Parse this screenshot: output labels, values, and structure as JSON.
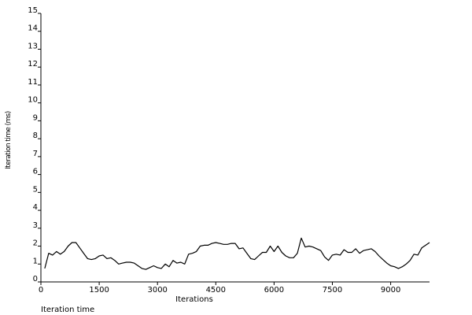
{
  "caption": "Iteration time",
  "chart_data": {
    "type": "line",
    "title": "",
    "xlabel": "Iterations",
    "ylabel": "Iteration time (ms)",
    "xlim": [
      0,
      10000
    ],
    "ylim": [
      0,
      15
    ],
    "xticks": [
      0,
      1500,
      3000,
      4500,
      6000,
      7500,
      9000
    ],
    "yticks": [
      0,
      1,
      2,
      3,
      4,
      5,
      6,
      7,
      8,
      9,
      10,
      11,
      12,
      13,
      14,
      15
    ],
    "grid": false,
    "series": [
      {
        "color": "#000000",
        "x": [
          100,
          200,
          300,
          400,
          500,
          600,
          700,
          800,
          900,
          1000,
          1100,
          1200,
          1300,
          1400,
          1500,
          1600,
          1700,
          1800,
          1900,
          2000,
          2100,
          2200,
          2300,
          2400,
          2500,
          2600,
          2700,
          2800,
          2900,
          3000,
          3100,
          3200,
          3300,
          3400,
          3500,
          3600,
          3700,
          3800,
          3900,
          4000,
          4100,
          4200,
          4300,
          4400,
          4500,
          4600,
          4700,
          4800,
          4900,
          5000,
          5100,
          5200,
          5300,
          5400,
          5500,
          5600,
          5700,
          5800,
          5900,
          6000,
          6100,
          6200,
          6300,
          6400,
          6500,
          6600,
          6700,
          6800,
          6900,
          7000,
          7100,
          7200,
          7300,
          7400,
          7500,
          7600,
          7700,
          7800,
          7900,
          8000,
          8100,
          8200,
          8300,
          8400,
          8500,
          8600,
          8700,
          8800,
          8900,
          9000,
          9100,
          9200,
          9300,
          9400,
          9500,
          9600,
          9700,
          9800,
          9900,
          10000
        ],
        "y": [
          0.75,
          1.6,
          1.5,
          1.7,
          1.55,
          1.7,
          2.0,
          2.2,
          2.2,
          1.9,
          1.6,
          1.3,
          1.25,
          1.3,
          1.45,
          1.5,
          1.3,
          1.35,
          1.2,
          1.0,
          1.05,
          1.1,
          1.1,
          1.05,
          0.9,
          0.75,
          0.7,
          0.8,
          0.9,
          0.8,
          0.75,
          1.0,
          0.85,
          1.2,
          1.05,
          1.1,
          1.0,
          1.55,
          1.6,
          1.7,
          2.0,
          2.05,
          2.05,
          2.15,
          2.2,
          2.15,
          2.1,
          2.1,
          2.15,
          2.15,
          1.85,
          1.9,
          1.6,
          1.3,
          1.25,
          1.45,
          1.65,
          1.65,
          2.0,
          1.7,
          2.0,
          1.65,
          1.45,
          1.35,
          1.35,
          1.6,
          2.45,
          1.95,
          2.0,
          1.95,
          1.85,
          1.75,
          1.4,
          1.2,
          1.5,
          1.55,
          1.5,
          1.8,
          1.65,
          1.65,
          1.85,
          1.6,
          1.75,
          1.8,
          1.85,
          1.7,
          1.45,
          1.25,
          1.05,
          0.9,
          0.85,
          0.75,
          0.85,
          1.0,
          1.2,
          1.55,
          1.5,
          1.9,
          2.05,
          2.2
        ]
      }
    ]
  }
}
